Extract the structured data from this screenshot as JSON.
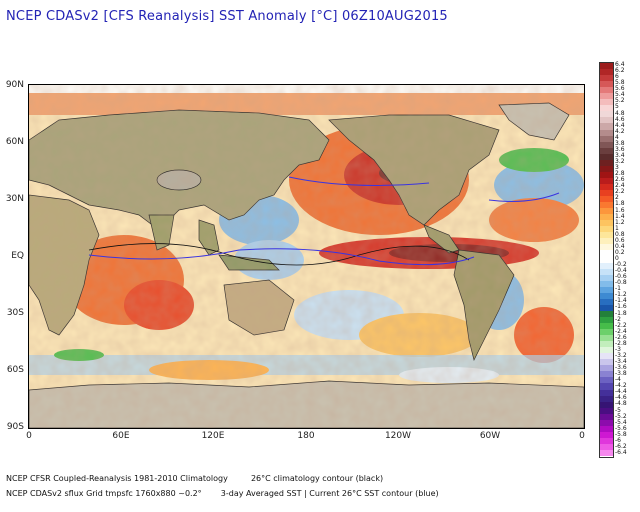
{
  "title": "NCEP CDASv2 [CFS Reanalysis] SST Anomaly [°C] 06Z10AUG2015",
  "latitude_labels": [
    "90N",
    "60N",
    "30N",
    "EQ",
    "30S",
    "60S",
    "90S"
  ],
  "longitude_labels": [
    "0",
    "60E",
    "120E",
    "180",
    "120W",
    "60W",
    "0"
  ],
  "colorbar": {
    "labels": [
      "6.4",
      "6.2",
      "6",
      "5.8",
      "5.6",
      "5.4",
      "5.2",
      "5",
      "4.8",
      "4.6",
      "4.4",
      "4.2",
      "4",
      "3.8",
      "3.6",
      "3.4",
      "3.2",
      "3",
      "2.8",
      "2.6",
      "2.4",
      "2.2",
      "2",
      "1.8",
      "1.6",
      "1.4",
      "1.2",
      "1",
      "0.8",
      "0.6",
      "0.4",
      "0.2",
      "0",
      "-0.2",
      "-0.4",
      "-0.6",
      "-0.8",
      "-1",
      "-1.2",
      "-1.4",
      "-1.6",
      "-1.8",
      "-2",
      "-2.2",
      "-2.4",
      "-2.6",
      "-2.8",
      "-3",
      "-3.2",
      "-3.4",
      "-3.6",
      "-3.8",
      "-4",
      "-4.2",
      "-4.4",
      "-4.6",
      "-4.8",
      "-5",
      "-5.2",
      "-5.4",
      "-5.6",
      "-5.8",
      "-6",
      "-6.2",
      "-6.4"
    ],
    "colors": [
      "#9c1c1c",
      "#b02626",
      "#c43a3a",
      "#d65858",
      "#e47a7a",
      "#ee9c9c",
      "#f4bcbc",
      "#f8d6d6",
      "#f0d8d8",
      "#e2c4c4",
      "#cca8a8",
      "#b48c8c",
      "#9a7070",
      "#805656",
      "#6a3e3e",
      "#5a2c2c",
      "#6e2020",
      "#861818",
      "#a01414",
      "#ba1c1c",
      "#d42a1e",
      "#e84020",
      "#f45a26",
      "#fa7830",
      "#fc963c",
      "#fdb04c",
      "#fdc460",
      "#fdd77a",
      "#fde69a",
      "#fef0bc",
      "#fff8de",
      "#ffffff",
      "#ffffff",
      "#e2f0fc",
      "#c6e2f8",
      "#a6d0f2",
      "#82bcea",
      "#5ea4e0",
      "#3e8ad2",
      "#286ec0",
      "#1a56aa",
      "#23803a",
      "#2ea040",
      "#46bc4a",
      "#6cd06a",
      "#98e092",
      "#c2eebc",
      "#e0f6dc",
      "#e6e4f6",
      "#cac6ec",
      "#aaa4e0",
      "#8a82d2",
      "#6c62c2",
      "#5446b0",
      "#44309a",
      "#3a2286",
      "#361474",
      "#4a0e82",
      "#6a0c96",
      "#8c0cac",
      "#b00cc2",
      "#ce18d2",
      "#e036dc",
      "#ee5ae6",
      "#f688ee"
    ]
  },
  "footer": {
    "line1_left": "NCEP CFSR Coupled-Reanalysis 1981-2010 Climatology",
    "line1_right": "26°C climatology contour (black)",
    "line2_left": "NCEP CDASv2 sflux Grid tmpsfc 1760x880 ~0.2°",
    "line2_right": "3-day Averaged SST | Current 26°C SST contour (blue)"
  }
}
